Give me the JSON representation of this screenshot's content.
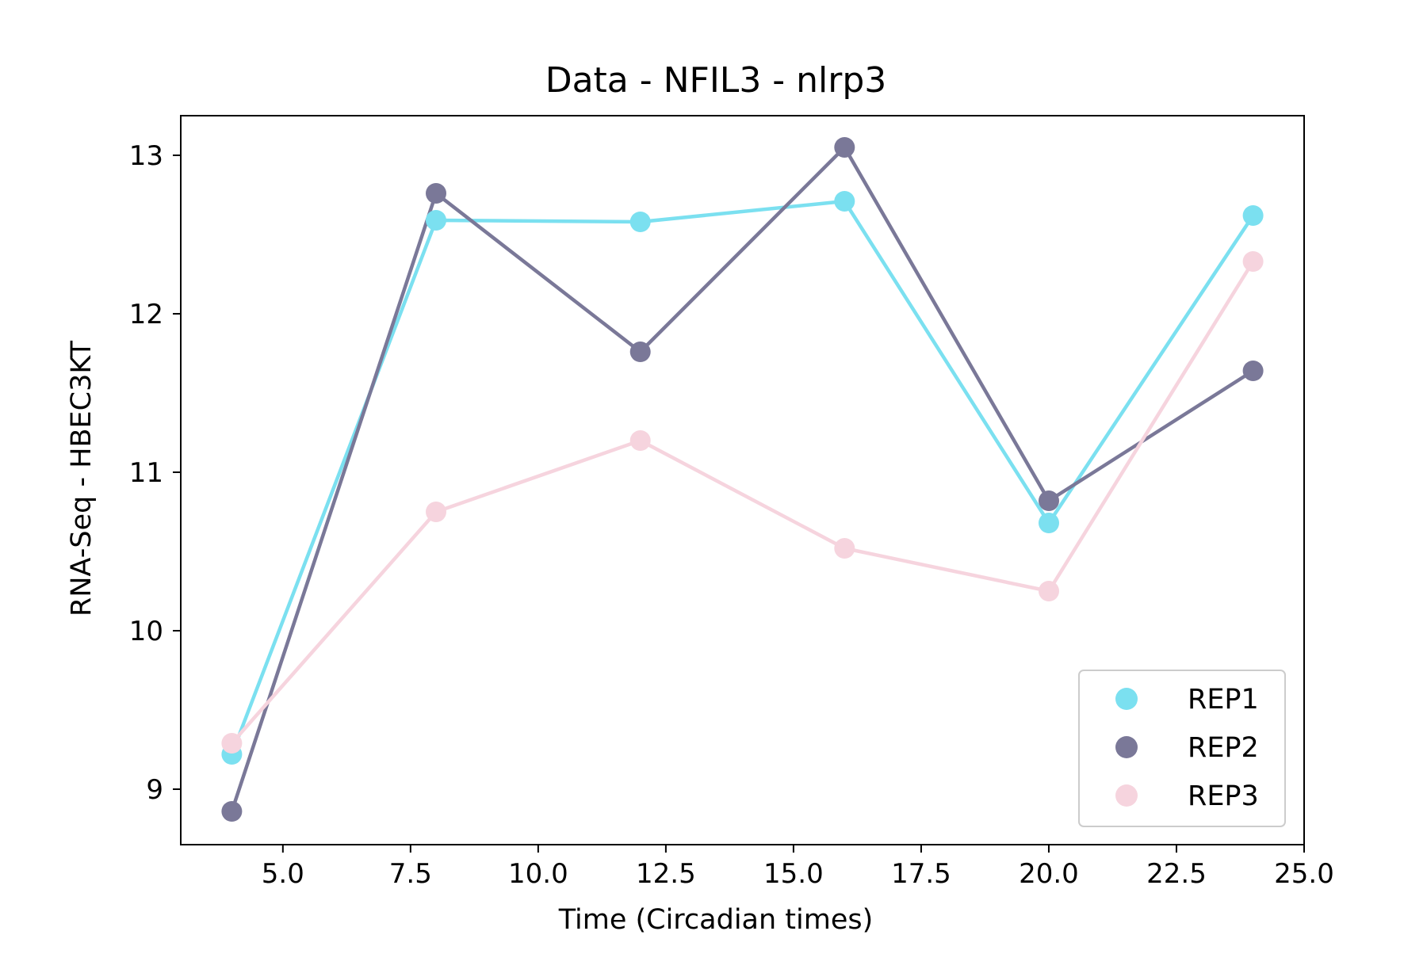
{
  "chart_data": {
    "type": "line",
    "title": "Data - NFIL3 - nlrp3",
    "xlabel": "Time (Circadian times)",
    "ylabel": "RNA-Seq - HBEC3KT",
    "xlim": [
      3.0,
      25.0
    ],
    "ylim": [
      8.65,
      13.25
    ],
    "x_ticks": [
      5.0,
      7.5,
      10.0,
      12.5,
      15.0,
      17.5,
      20.0,
      22.5,
      25.0
    ],
    "x_tick_labels": [
      "5.0",
      "7.5",
      "10.0",
      "12.5",
      "15.0",
      "17.5",
      "20.0",
      "22.5",
      "25.0"
    ],
    "y_ticks": [
      9,
      10,
      11,
      12,
      13
    ],
    "y_tick_labels": [
      "9",
      "10",
      "11",
      "12",
      "13"
    ],
    "grid": false,
    "legend_position": "lower-right",
    "x": [
      4,
      8,
      12,
      16,
      20,
      24
    ],
    "series": [
      {
        "name": "REP1",
        "color": "#7be0f0",
        "values": [
          9.22,
          12.59,
          12.58,
          12.71,
          10.68,
          12.62
        ]
      },
      {
        "name": "REP2",
        "color": "#7a7898",
        "values": [
          8.86,
          12.76,
          11.76,
          13.05,
          10.82,
          11.64
        ]
      },
      {
        "name": "REP3",
        "color": "#f6d4de",
        "values": [
          9.29,
          10.75,
          11.2,
          10.52,
          10.25,
          12.33
        ]
      }
    ]
  }
}
